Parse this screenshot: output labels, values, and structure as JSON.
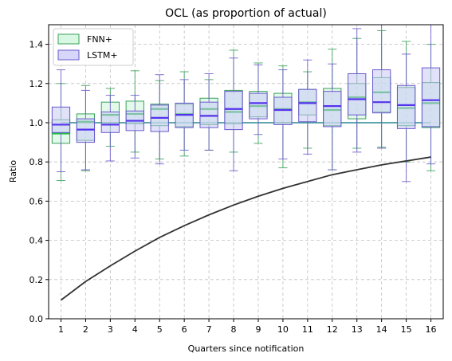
{
  "chart_data": {
    "type": "box",
    "title": "OCL (as proportion of actual)",
    "xlabel": "Quarters since notification",
    "ylabel": "Ratio",
    "categories": [
      "1",
      "2",
      "3",
      "4",
      "5",
      "6",
      "7",
      "8",
      "9",
      "10",
      "11",
      "12",
      "13",
      "14",
      "15",
      "16"
    ],
    "ylim": [
      0.0,
      1.5
    ],
    "yticks": [
      "0.0",
      "0.2",
      "0.4",
      "0.6",
      "0.8",
      "1.0",
      "1.2",
      "1.4"
    ],
    "grid": true,
    "legend_position": "top-left",
    "series": [
      {
        "name": "FNN+",
        "fill": "#ccf5d9",
        "edge": "#3aa05a",
        "median_color": "#22bb44",
        "boxes": [
          {
            "q1": 0.895,
            "med": 0.945,
            "q3": 1.015,
            "lo": 0.705,
            "hi": 1.2
          },
          {
            "q1": 0.91,
            "med": 1.005,
            "q3": 1.045,
            "lo": 0.755,
            "hi": 1.19
          },
          {
            "q1": 1.0,
            "med": 1.04,
            "q3": 1.105,
            "lo": 0.88,
            "hi": 1.175
          },
          {
            "q1": 0.995,
            "med": 1.045,
            "q3": 1.11,
            "lo": 0.85,
            "hi": 1.265
          },
          {
            "q1": 0.985,
            "med": 1.07,
            "q3": 1.095,
            "lo": 0.815,
            "hi": 1.215
          },
          {
            "q1": 0.98,
            "med": 1.045,
            "q3": 1.095,
            "lo": 0.83,
            "hi": 1.26
          },
          {
            "q1": 0.99,
            "med": 1.07,
            "q3": 1.125,
            "lo": 0.86,
            "hi": 1.22
          },
          {
            "q1": 0.995,
            "med": 1.055,
            "q3": 1.165,
            "lo": 0.85,
            "hi": 1.37
          },
          {
            "q1": 1.03,
            "med": 1.085,
            "q3": 1.16,
            "lo": 0.895,
            "hi": 1.305
          },
          {
            "q1": 1.0,
            "med": 1.07,
            "q3": 1.15,
            "lo": 0.77,
            "hi": 1.29
          },
          {
            "q1": 1.04,
            "med": 1.105,
            "q3": 1.17,
            "lo": 0.87,
            "hi": 1.26
          },
          {
            "q1": 0.985,
            "med": 1.065,
            "q3": 1.175,
            "lo": 0.76,
            "hi": 1.375
          },
          {
            "q1": 1.02,
            "med": 1.13,
            "q3": 1.2,
            "lo": 0.87,
            "hi": 1.43
          },
          {
            "q1": 1.055,
            "med": 1.155,
            "q3": 1.23,
            "lo": 0.875,
            "hi": 1.47
          },
          {
            "q1": 0.985,
            "med": 1.075,
            "q3": 1.18,
            "lo": 0.8,
            "hi": 1.415
          },
          {
            "q1": 0.975,
            "med": 1.1,
            "q3": 1.205,
            "lo": 0.755,
            "hi": 1.4
          }
        ]
      },
      {
        "name": "LSTM+",
        "fill": "#c8c8f5",
        "edge": "#6a5acd",
        "median_color": "#5533ee",
        "boxes": [
          {
            "q1": 0.95,
            "med": 0.99,
            "q3": 1.08,
            "lo": 0.75,
            "hi": 1.27
          },
          {
            "q1": 0.9,
            "med": 0.965,
            "q3": 1.02,
            "lo": 0.76,
            "hi": 1.165
          },
          {
            "q1": 0.95,
            "med": 0.99,
            "q3": 1.055,
            "lo": 0.805,
            "hi": 1.14
          },
          {
            "q1": 0.96,
            "med": 1.01,
            "q3": 1.06,
            "lo": 0.82,
            "hi": 1.14
          },
          {
            "q1": 0.955,
            "med": 1.025,
            "q3": 1.09,
            "lo": 0.79,
            "hi": 1.245
          },
          {
            "q1": 0.975,
            "med": 1.04,
            "q3": 1.1,
            "lo": 0.86,
            "hi": 1.22
          },
          {
            "q1": 0.975,
            "med": 1.035,
            "q3": 1.105,
            "lo": 0.86,
            "hi": 1.25
          },
          {
            "q1": 0.965,
            "med": 1.07,
            "q3": 1.16,
            "lo": 0.755,
            "hi": 1.33
          },
          {
            "q1": 1.02,
            "med": 1.1,
            "q3": 1.15,
            "lo": 0.94,
            "hi": 1.295
          },
          {
            "q1": 0.99,
            "med": 1.065,
            "q3": 1.13,
            "lo": 0.815,
            "hi": 1.27
          },
          {
            "q1": 1.005,
            "med": 1.1,
            "q3": 1.17,
            "lo": 0.84,
            "hi": 1.32
          },
          {
            "q1": 0.98,
            "med": 1.085,
            "q3": 1.16,
            "lo": 0.76,
            "hi": 1.3
          },
          {
            "q1": 1.04,
            "med": 1.12,
            "q3": 1.25,
            "lo": 0.85,
            "hi": 1.48
          },
          {
            "q1": 1.05,
            "med": 1.105,
            "q3": 1.27,
            "lo": 0.87,
            "hi": 1.5
          },
          {
            "q1": 0.97,
            "med": 1.09,
            "q3": 1.19,
            "lo": 0.7,
            "hi": 1.35
          },
          {
            "q1": 0.98,
            "med": 1.115,
            "q3": 1.28,
            "lo": 0.79,
            "hi": 1.5
          }
        ]
      }
    ],
    "reference_lines": [
      {
        "kind": "horizontal",
        "y": 1.0,
        "color": "#2a8a96"
      },
      {
        "kind": "curve",
        "color": "#333333",
        "x": [
          "1",
          "2",
          "3",
          "4",
          "5",
          "6",
          "7",
          "8",
          "9",
          "10",
          "11",
          "12",
          "13",
          "14",
          "15",
          "16"
        ],
        "y": [
          0.095,
          0.19,
          0.27,
          0.345,
          0.415,
          0.475,
          0.53,
          0.58,
          0.625,
          0.665,
          0.7,
          0.735,
          0.76,
          0.785,
          0.805,
          0.825
        ]
      }
    ]
  }
}
